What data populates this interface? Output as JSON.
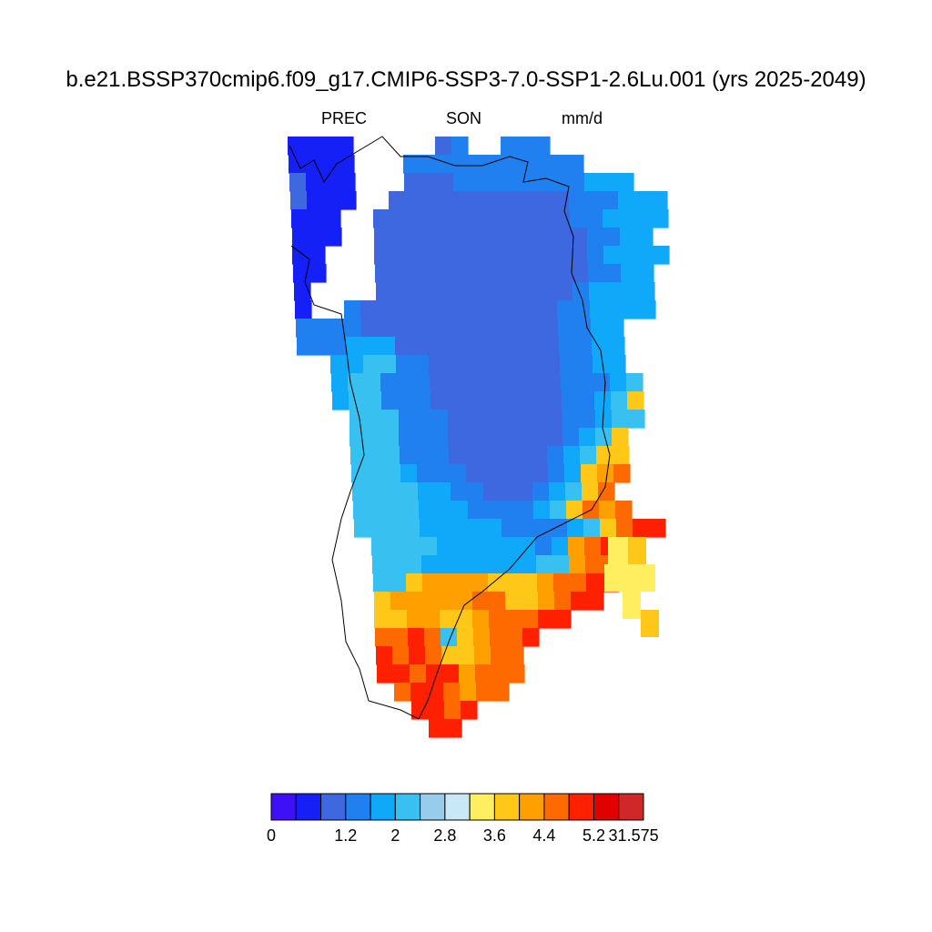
{
  "title": "b.e21.BSSP370cmip6.f09_g17.CMIP6-SSP3-7.0-SSP1-2.6Lu.001 (yrs 2025-2049)",
  "variable": "PREC",
  "season": "SON",
  "units": "mm/d",
  "colorbar": {
    "colors": [
      "#3d10f7",
      "#1520f7",
      "#3d68df",
      "#2080f0",
      "#10a8f8",
      "#38c0f0",
      "#98ccec",
      "#c8e8f8",
      "#ffee60",
      "#ffc818",
      "#ffa000",
      "#ff6a00",
      "#ff2000",
      "#e00000",
      "#d02828"
    ],
    "tick_labels": [
      "0",
      "1.2",
      "2",
      "2.8",
      "3.6",
      "4.4",
      "5.2",
      "31.575"
    ]
  },
  "map_data": {
    "type": "gridded-precipitation",
    "region": "Greenland",
    "rows": [
      "1111.....23..333",
      "1111...33333333333.",
      "2111...22233333333444",
      "2111..22222222222333444",
      "111..222222222222334444",
      "111..22222222222223344",
      "11...222222222222234444",
      "11...22222222222223344",
      "1....22222222222234444",
      "1..3222222222222334444",
      "33332222222222223344",
      "33344422222222223344",
      "..445533222222223344",
      "..4553332222222233345",
      "..4553332222222233456",
      "...555333222222233455",
      "...55533322222223456",
      "...55533322222234566",
      "...55543332222234678",
      "...5555443322234568",
      "...55554443333456878",
      "...5555444443333456899",
      "....5555444444347898",
      "....5554444444557889",
      "....556777766678899",
      "....67777788667899",
      "....667766788899",
      "....8898567889",
      "....989866788",
      "....998997888",
      ".....8998788",
      "......9989",
      ".......99"
    ]
  }
}
